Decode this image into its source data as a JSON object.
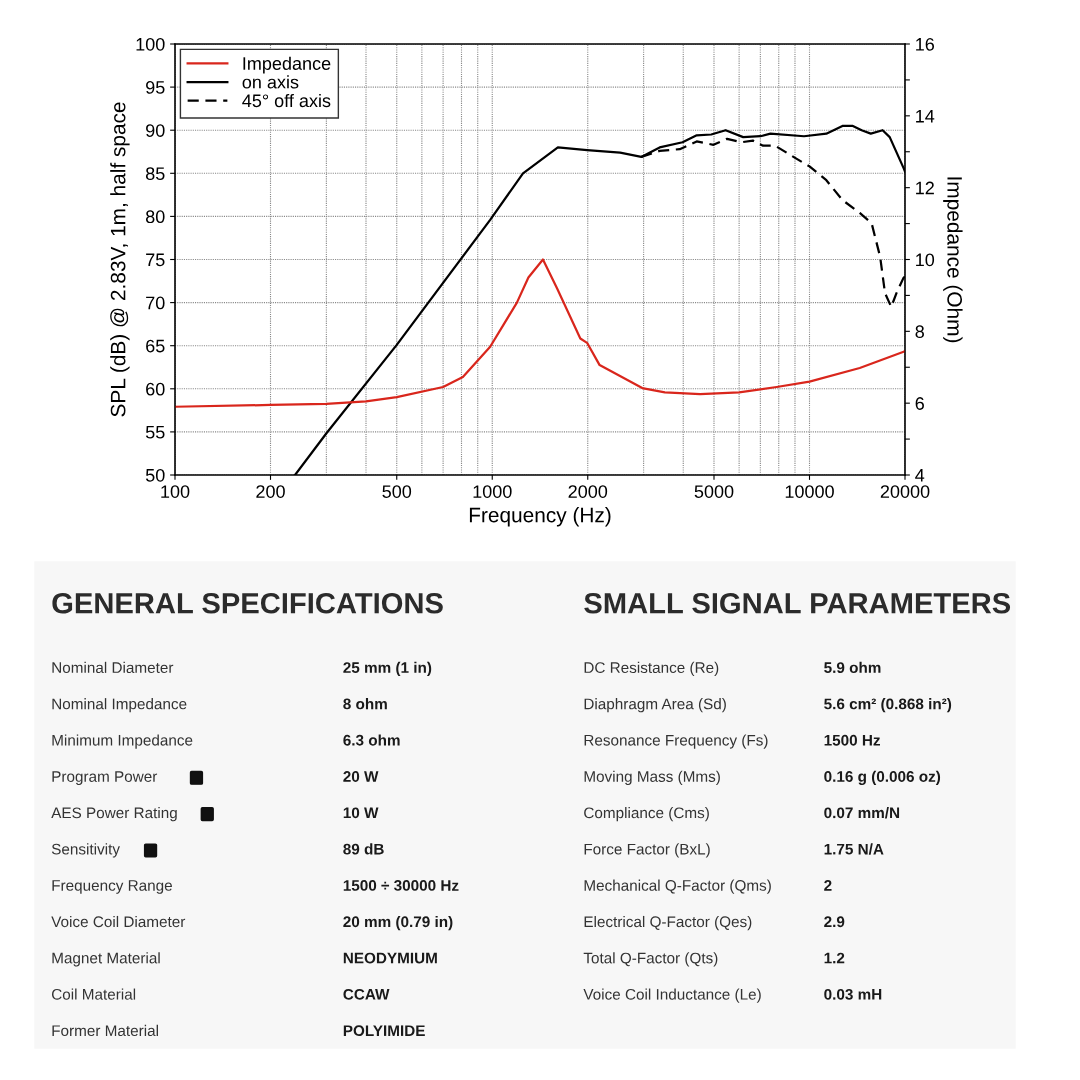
{
  "chart_data": [
    {
      "type": "line",
      "xlabel": "Frequency (Hz)",
      "ylabel": "SPL (dB) @ 2.83V, 1m, half space",
      "y2label": "Impedance (Ohm)",
      "log": "x",
      "grid": true,
      "legend": "top left",
      "xlim": [
        100,
        20000
      ],
      "xticks": [
        100,
        200,
        500,
        1000,
        2000,
        5000,
        10000,
        20000
      ],
      "ylim": [
        50,
        100
      ],
      "yticks": [
        50,
        55,
        60,
        65,
        70,
        75,
        80,
        85,
        90,
        95,
        100
      ],
      "y2lim": [
        4,
        16
      ],
      "y2ticks": [
        4,
        {
          "value": 5,
          "label": null
        },
        6,
        {
          "value": 7,
          "label": null
        },
        8,
        {
          "value": 9,
          "label": null
        },
        10,
        {
          "value": 11,
          "label": null
        },
        12,
        {
          "value": 13,
          "label": null
        },
        14,
        {
          "value": 15,
          "label": null
        },
        16
      ],
      "series": [
        {
          "name": "Impedance",
          "color": "#d9261c",
          "axis": "y2",
          "line_style": "solid",
          "x": [
            100,
            200,
            300,
            400,
            500,
            700,
            808,
            985,
            1196,
            1300,
            1445,
            1600,
            1895,
            1990,
            2180,
            2970,
            3500,
            4520,
            6000,
            7880,
            10000,
            14400,
            19800,
            20000
          ],
          "values": [
            5.9,
            5.95,
            5.98,
            6.05,
            6.17,
            6.45,
            6.73,
            7.57,
            8.8,
            9.5,
            10.0,
            9.2,
            7.8,
            7.68,
            7.06,
            6.42,
            6.3,
            6.25,
            6.3,
            6.45,
            6.6,
            6.98,
            7.43,
            7.45
          ]
        },
        {
          "name": "on axis",
          "color": "#000000",
          "line_style": "solid",
          "x": [
            239,
            301,
            500,
            985,
            1250,
            1610,
            1990,
            2530,
            2950,
            3370,
            3980,
            4410,
            4900,
            5440,
            6180,
            7000,
            7530,
            9610,
            11300,
            12700,
            13700,
            14600,
            15600,
            17000,
            17900,
            19800,
            20000
          ],
          "values": [
            50,
            54.9,
            65.1,
            79.6,
            85.0,
            88.0,
            87.7,
            87.4,
            86.9,
            88.0,
            88.6,
            89.4,
            89.5,
            90.0,
            89.2,
            89.3,
            89.6,
            89.3,
            89.6,
            90.5,
            90.5,
            90.0,
            89.6,
            90.0,
            89.2,
            85.6,
            85.2
          ]
        },
        {
          "name": "45° off axis",
          "color": "#000000",
          "line_style": "dashed",
          "x": [
            2950,
            3370,
            3900,
            4410,
            4980,
            5500,
            6100,
            6630,
            7140,
            7800,
            8900,
            10000,
            11300,
            12700,
            14400,
            15700,
            16700,
            17300,
            18100,
            18800,
            19800,
            20000
          ],
          "values": [
            86.9,
            87.6,
            87.8,
            88.7,
            88.3,
            89.0,
            88.6,
            88.8,
            88.2,
            88.2,
            86.9,
            85.8,
            84.2,
            81.9,
            80.4,
            79.2,
            75.3,
            71.1,
            69.5,
            71.1,
            72.9,
            73.0
          ]
        }
      ]
    },
    {
      "type": "other",
      "title": "GENERAL SPECIFICATIONS",
      "annotations": [
        "Nominal Diameter",
        "25 mm (1 in)",
        "Nominal Impedance",
        "8 ohm",
        "Minimum Impedance",
        "6.3 ohm",
        "Program Power",
        "20 W",
        "AES Power Rating",
        "10 W",
        "Sensitivity",
        "89 dB",
        "Frequency Range",
        "1500 ÷ 30000 Hz",
        "Voice Coil Diameter",
        "20 mm (0.79 in)",
        "Magnet Material",
        "NEODYMIUM",
        "Coil Material",
        "CCAW",
        "Former Material",
        "POLYIMIDE"
      ]
    },
    {
      "type": "other",
      "title": "SMALL SIGNAL PARAMETERS",
      "annotations": [
        "DC Resistance (Re)",
        "5.9 ohm",
        "Diaphragm Area (Sd)",
        "5.6 cm² (0.868 in²)",
        "Resonance Frequency (Fs)",
        "1500 Hz",
        "Moving Mass (Mms)",
        "0.16 g (0.006 oz)",
        "Compliance (Cms)",
        "0.07 mm/N",
        "Force Factor (BxL)",
        "1.75 N/A",
        "Mechanical Q-Factor (Qms)",
        "2",
        "Electrical Q-Factor (Qes)",
        "2.9",
        "Total Q-Factor (Qts)",
        "1.2",
        "Voice Coil Inductance (Le)",
        "0.03 mH"
      ]
    }
  ]
}
